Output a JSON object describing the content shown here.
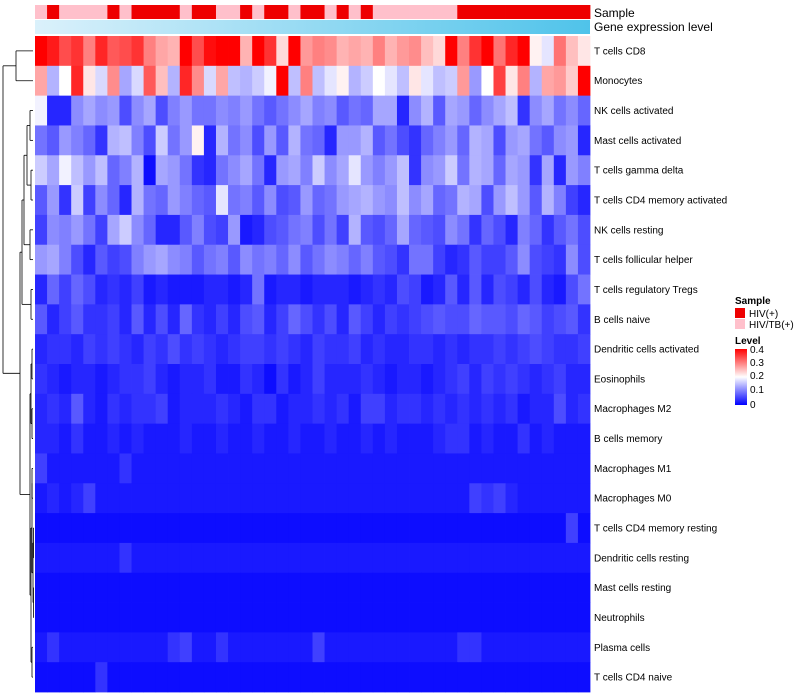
{
  "chart_data": {
    "type": "heatmap",
    "annotation_rows": [
      "Sample",
      "Gene expression level"
    ],
    "row_labels": [
      "T cells CD8",
      "Monocytes",
      "NK cells activated",
      "Mast cells activated",
      "T cells gamma delta",
      "T cells CD4 memory activated",
      "NK cells resting",
      "T cells follicular helper",
      "T cells regulatory  Tregs",
      "B cells naive",
      "Dendritic cells activated",
      "Eosinophils",
      "Macrophages M2",
      "B cells memory",
      "Macrophages M1",
      "Macrophages M0",
      "T cells CD4 memory resting",
      "Dendritic cells resting",
      "Mast cells resting",
      "Neutrophils",
      "Plasma cells",
      "T cells CD4 naive"
    ],
    "sample_groups": [
      "HIV/TB(+)",
      "HIV(+)",
      "HIV/TB(+)",
      "HIV/TB(+)",
      "HIV/TB(+)",
      "HIV/TB(+)",
      "HIV(+)",
      "HIV/TB(+)",
      "HIV(+)",
      "HIV(+)",
      "HIV(+)",
      "HIV(+)",
      "HIV/TB(+)",
      "HIV(+)",
      "HIV(+)",
      "HIV/TB(+)",
      "HIV/TB(+)",
      "HIV(+)",
      "HIV/TB(+)",
      "HIV(+)",
      "HIV(+)",
      "HIV/TB(+)",
      "HIV(+)",
      "HIV(+)",
      "HIV/TB(+)",
      "HIV(+)",
      "HIV/TB(+)",
      "HIV(+)",
      "HIV/TB(+)",
      "HIV/TB(+)",
      "HIV/TB(+)",
      "HIV/TB(+)",
      "HIV/TB(+)",
      "HIV/TB(+)",
      "HIV/TB(+)",
      "HIV(+)",
      "HIV(+)",
      "HIV(+)",
      "HIV(+)",
      "HIV(+)",
      "HIV(+)",
      "HIV(+)",
      "HIV(+)",
      "HIV(+)",
      "HIV(+)",
      "HIV(+)"
    ],
    "values": [
      [
        0.4,
        0.38,
        0.34,
        0.36,
        0.3,
        0.37,
        0.33,
        0.34,
        0.36,
        0.3,
        0.27,
        0.26,
        0.4,
        0.34,
        0.39,
        0.4,
        0.4,
        0.26,
        0.4,
        0.36,
        0.23,
        0.4,
        0.28,
        0.3,
        0.29,
        0.26,
        0.27,
        0.26,
        0.3,
        0.26,
        0.28,
        0.29,
        0.25,
        0.23,
        0.4,
        0.3,
        0.36,
        0.4,
        0.31,
        0.37,
        0.4,
        0.21,
        0.18,
        0.31,
        0.25,
        0.22
      ],
      [
        0.27,
        0.14,
        0.2,
        0.37,
        0.22,
        0.17,
        0.29,
        0.13,
        0.17,
        0.33,
        0.25,
        0.14,
        0.37,
        0.29,
        0.17,
        0.27,
        0.15,
        0.14,
        0.16,
        0.19,
        0.4,
        0.15,
        0.3,
        0.15,
        0.18,
        0.21,
        0.14,
        0.16,
        0.2,
        0.18,
        0.15,
        0.22,
        0.18,
        0.15,
        0.16,
        0.28,
        0.12,
        0.2,
        0.35,
        0.22,
        0.3,
        0.14,
        0.27,
        0.28,
        0.24,
        0.4
      ],
      [
        0.19,
        0.03,
        0.03,
        0.11,
        0.13,
        0.11,
        0.12,
        0.06,
        0.11,
        0.13,
        0.06,
        0.1,
        0.12,
        0.09,
        0.09,
        0.11,
        0.1,
        0.12,
        0.09,
        0.07,
        0.09,
        0.11,
        0.13,
        0.1,
        0.11,
        0.07,
        0.09,
        0.08,
        0.13,
        0.13,
        0.03,
        0.11,
        0.14,
        0.07,
        0.13,
        0.12,
        0.08,
        0.11,
        0.13,
        0.15,
        0.04,
        0.11,
        0.13,
        0.09,
        0.11,
        0.08
      ],
      [
        0.09,
        0.07,
        0.12,
        0.1,
        0.08,
        0.04,
        0.14,
        0.15,
        0.1,
        0.06,
        0.16,
        0.09,
        0.12,
        0.21,
        0.03,
        0.14,
        0.09,
        0.11,
        0.06,
        0.12,
        0.07,
        0.14,
        0.09,
        0.08,
        0.03,
        0.12,
        0.12,
        0.14,
        0.07,
        0.09,
        0.06,
        0.04,
        0.08,
        0.1,
        0.12,
        0.08,
        0.14,
        0.13,
        0.06,
        0.12,
        0.13,
        0.09,
        0.07,
        0.11,
        0.12,
        0.03
      ],
      [
        0.16,
        0.13,
        0.19,
        0.15,
        0.12,
        0.15,
        0.08,
        0.1,
        0.14,
        0.01,
        0.13,
        0.12,
        0.09,
        0.04,
        0.03,
        0.09,
        0.11,
        0.13,
        0.09,
        0.03,
        0.12,
        0.13,
        0.1,
        0.16,
        0.11,
        0.13,
        0.18,
        0.12,
        0.1,
        0.12,
        0.15,
        0.04,
        0.11,
        0.12,
        0.16,
        0.09,
        0.14,
        0.13,
        0.08,
        0.13,
        0.12,
        0.04,
        0.13,
        0.03,
        0.12,
        0.1
      ],
      [
        0.07,
        0.12,
        0.04,
        0.16,
        0.05,
        0.11,
        0.08,
        0.03,
        0.14,
        0.09,
        0.08,
        0.12,
        0.1,
        0.08,
        0.07,
        0.18,
        0.09,
        0.1,
        0.07,
        0.11,
        0.06,
        0.07,
        0.12,
        0.08,
        0.09,
        0.12,
        0.13,
        0.14,
        0.12,
        0.11,
        0.15,
        0.11,
        0.13,
        0.08,
        0.09,
        0.14,
        0.13,
        0.06,
        0.12,
        0.15,
        0.12,
        0.07,
        0.14,
        0.1,
        0.05,
        0.03
      ],
      [
        0.05,
        0.11,
        0.1,
        0.12,
        0.09,
        0.05,
        0.13,
        0.16,
        0.11,
        0.08,
        0.03,
        0.03,
        0.07,
        0.1,
        0.06,
        0.05,
        0.12,
        0.02,
        0.03,
        0.06,
        0.07,
        0.09,
        0.1,
        0.06,
        0.09,
        0.05,
        0.14,
        0.07,
        0.06,
        0.08,
        0.13,
        0.08,
        0.07,
        0.06,
        0.11,
        0.09,
        0.04,
        0.08,
        0.06,
        0.03,
        0.1,
        0.08,
        0.04,
        0.07,
        0.09,
        0.06
      ],
      [
        0.12,
        0.13,
        0.1,
        0.06,
        0.03,
        0.07,
        0.05,
        0.06,
        0.1,
        0.12,
        0.13,
        0.11,
        0.1,
        0.07,
        0.09,
        0.1,
        0.07,
        0.11,
        0.09,
        0.1,
        0.08,
        0.11,
        0.07,
        0.09,
        0.11,
        0.1,
        0.08,
        0.1,
        0.07,
        0.06,
        0.04,
        0.09,
        0.09,
        0.05,
        0.03,
        0.04,
        0.07,
        0.05,
        0.05,
        0.07,
        0.11,
        0.06,
        0.05,
        0.04,
        0.11,
        0.06
      ],
      [
        0.03,
        0.08,
        0.05,
        0.08,
        0.06,
        0.03,
        0.04,
        0.03,
        0.05,
        0.02,
        0.03,
        0.02,
        0.02,
        0.02,
        0.03,
        0.03,
        0.02,
        0.03,
        0.09,
        0.02,
        0.03,
        0.03,
        0.02,
        0.03,
        0.03,
        0.03,
        0.02,
        0.03,
        0.04,
        0.03,
        0.06,
        0.05,
        0.02,
        0.03,
        0.07,
        0.03,
        0.07,
        0.03,
        0.06,
        0.05,
        0.03,
        0.06,
        0.03,
        0.02,
        0.06,
        0.09
      ],
      [
        0.07,
        0.03,
        0.05,
        0.07,
        0.04,
        0.04,
        0.05,
        0.03,
        0.07,
        0.03,
        0.06,
        0.03,
        0.08,
        0.04,
        0.03,
        0.05,
        0.03,
        0.06,
        0.07,
        0.03,
        0.05,
        0.08,
        0.06,
        0.04,
        0.06,
        0.03,
        0.07,
        0.05,
        0.03,
        0.05,
        0.04,
        0.05,
        0.06,
        0.07,
        0.06,
        0.06,
        0.08,
        0.07,
        0.07,
        0.06,
        0.08,
        0.07,
        0.05,
        0.06,
        0.07,
        0.04
      ],
      [
        0.03,
        0.04,
        0.04,
        0.03,
        0.05,
        0.04,
        0.05,
        0.04,
        0.03,
        0.05,
        0.04,
        0.06,
        0.04,
        0.05,
        0.04,
        0.03,
        0.04,
        0.05,
        0.05,
        0.04,
        0.05,
        0.04,
        0.03,
        0.05,
        0.04,
        0.04,
        0.05,
        0.03,
        0.04,
        0.03,
        0.03,
        0.04,
        0.04,
        0.03,
        0.04,
        0.03,
        0.04,
        0.04,
        0.05,
        0.04,
        0.05,
        0.06,
        0.05,
        0.04,
        0.04,
        0.05
      ],
      [
        0.04,
        0.03,
        0.02,
        0.03,
        0.03,
        0.02,
        0.03,
        0.04,
        0.04,
        0.05,
        0.03,
        0.02,
        0.03,
        0.03,
        0.04,
        0.02,
        0.02,
        0.04,
        0.03,
        0.01,
        0.04,
        0.02,
        0.03,
        0.05,
        0.03,
        0.03,
        0.03,
        0.04,
        0.03,
        0.02,
        0.03,
        0.03,
        0.02,
        0.03,
        0.04,
        0.05,
        0.03,
        0.05,
        0.04,
        0.05,
        0.04,
        0.03,
        0.04,
        0.05,
        0.03,
        0.03
      ],
      [
        0.03,
        0.04,
        0.03,
        0.07,
        0.03,
        0.02,
        0.04,
        0.03,
        0.04,
        0.04,
        0.05,
        0.02,
        0.03,
        0.03,
        0.03,
        0.04,
        0.03,
        0.02,
        0.04,
        0.04,
        0.02,
        0.03,
        0.03,
        0.04,
        0.03,
        0.04,
        0.02,
        0.05,
        0.05,
        0.03,
        0.04,
        0.04,
        0.03,
        0.04,
        0.03,
        0.04,
        0.03,
        0.04,
        0.03,
        0.04,
        0.02,
        0.03,
        0.03,
        0.06,
        0.03,
        0.04
      ],
      [
        0.03,
        0.03,
        0.02,
        0.04,
        0.02,
        0.02,
        0.03,
        0.02,
        0.03,
        0.02,
        0.02,
        0.02,
        0.03,
        0.02,
        0.02,
        0.03,
        0.02,
        0.02,
        0.03,
        0.02,
        0.02,
        0.03,
        0.02,
        0.02,
        0.03,
        0.02,
        0.02,
        0.03,
        0.02,
        0.03,
        0.02,
        0.02,
        0.02,
        0.03,
        0.04,
        0.04,
        0.02,
        0.03,
        0.02,
        0.02,
        0.04,
        0.02,
        0.03,
        0.02,
        0.02,
        0.02
      ],
      [
        0.05,
        0.02,
        0.02,
        0.02,
        0.02,
        0.02,
        0.02,
        0.04,
        0.02,
        0.02,
        0.02,
        0.02,
        0.02,
        0.02,
        0.02,
        0.02,
        0.02,
        0.02,
        0.02,
        0.02,
        0.02,
        0.02,
        0.02,
        0.02,
        0.02,
        0.02,
        0.02,
        0.02,
        0.02,
        0.02,
        0.02,
        0.02,
        0.02,
        0.02,
        0.02,
        0.02,
        0.02,
        0.02,
        0.02,
        0.02,
        0.02,
        0.02,
        0.02,
        0.02,
        0.02,
        0.02
      ],
      [
        0.02,
        0.03,
        0.02,
        0.03,
        0.05,
        0.02,
        0.02,
        0.02,
        0.02,
        0.02,
        0.02,
        0.02,
        0.02,
        0.02,
        0.02,
        0.02,
        0.02,
        0.02,
        0.02,
        0.02,
        0.02,
        0.02,
        0.02,
        0.02,
        0.02,
        0.02,
        0.02,
        0.02,
        0.02,
        0.02,
        0.02,
        0.02,
        0.02,
        0.02,
        0.02,
        0.02,
        0.05,
        0.04,
        0.05,
        0.03,
        0.02,
        0.02,
        0.02,
        0.02,
        0.02,
        0.02
      ],
      [
        0.01,
        0.01,
        0.01,
        0.01,
        0.01,
        0.01,
        0.01,
        0.01,
        0.01,
        0.01,
        0.01,
        0.01,
        0.01,
        0.01,
        0.01,
        0.01,
        0.01,
        0.01,
        0.01,
        0.01,
        0.01,
        0.01,
        0.01,
        0.01,
        0.01,
        0.01,
        0.01,
        0.01,
        0.01,
        0.01,
        0.01,
        0.01,
        0.01,
        0.01,
        0.01,
        0.01,
        0.01,
        0.01,
        0.01,
        0.01,
        0.01,
        0.01,
        0.01,
        0.01,
        0.05,
        0.01
      ],
      [
        0.02,
        0.02,
        0.02,
        0.02,
        0.02,
        0.02,
        0.02,
        0.04,
        0.02,
        0.02,
        0.02,
        0.02,
        0.02,
        0.02,
        0.02,
        0.02,
        0.02,
        0.02,
        0.02,
        0.02,
        0.02,
        0.02,
        0.02,
        0.02,
        0.02,
        0.02,
        0.02,
        0.02,
        0.02,
        0.02,
        0.02,
        0.02,
        0.02,
        0.02,
        0.02,
        0.02,
        0.02,
        0.02,
        0.02,
        0.02,
        0.02,
        0.02,
        0.02,
        0.02,
        0.02,
        0.02
      ],
      [
        0.01,
        0.01,
        0.01,
        0.01,
        0.01,
        0.01,
        0.01,
        0.01,
        0.01,
        0.01,
        0.01,
        0.01,
        0.01,
        0.01,
        0.01,
        0.01,
        0.01,
        0.01,
        0.01,
        0.01,
        0.01,
        0.01,
        0.01,
        0.01,
        0.01,
        0.01,
        0.01,
        0.01,
        0.01,
        0.01,
        0.01,
        0.01,
        0.01,
        0.01,
        0.01,
        0.01,
        0.01,
        0.01,
        0.01,
        0.01,
        0.01,
        0.01,
        0.01,
        0.01,
        0.01,
        0.01
      ],
      [
        0.01,
        0.01,
        0.01,
        0.01,
        0.01,
        0.01,
        0.01,
        0.01,
        0.01,
        0.01,
        0.01,
        0.01,
        0.01,
        0.01,
        0.01,
        0.01,
        0.01,
        0.01,
        0.01,
        0.01,
        0.01,
        0.01,
        0.01,
        0.01,
        0.01,
        0.01,
        0.01,
        0.01,
        0.01,
        0.01,
        0.01,
        0.01,
        0.01,
        0.01,
        0.01,
        0.01,
        0.01,
        0.01,
        0.01,
        0.01,
        0.01,
        0.01,
        0.01,
        0.01,
        0.01,
        0.01
      ],
      [
        0.02,
        0.04,
        0.02,
        0.02,
        0.02,
        0.02,
        0.02,
        0.02,
        0.02,
        0.02,
        0.02,
        0.04,
        0.05,
        0.02,
        0.02,
        0.04,
        0.02,
        0.02,
        0.02,
        0.02,
        0.02,
        0.02,
        0.02,
        0.05,
        0.02,
        0.02,
        0.02,
        0.02,
        0.02,
        0.02,
        0.02,
        0.02,
        0.02,
        0.02,
        0.02,
        0.04,
        0.04,
        0.02,
        0.02,
        0.02,
        0.02,
        0.02,
        0.02,
        0.02,
        0.02,
        0.02
      ],
      [
        0.01,
        0.01,
        0.01,
        0.01,
        0.01,
        0.04,
        0.01,
        0.01,
        0.01,
        0.01,
        0.01,
        0.01,
        0.01,
        0.01,
        0.01,
        0.01,
        0.01,
        0.01,
        0.01,
        0.01,
        0.01,
        0.01,
        0.01,
        0.01,
        0.01,
        0.01,
        0.01,
        0.01,
        0.01,
        0.01,
        0.01,
        0.01,
        0.01,
        0.01,
        0.01,
        0.01,
        0.01,
        0.01,
        0.01,
        0.01,
        0.01,
        0.01,
        0.01,
        0.01,
        0.01,
        0.01
      ]
    ],
    "legend": {
      "sample_title": "Sample",
      "sample_entries": [
        {
          "label": "HIV(+)",
          "color": "#ee0000"
        },
        {
          "label": "HIV/TB(+)",
          "color": "#ffc0cb"
        }
      ],
      "level_title": "Level",
      "level_ticks": [
        "0.4",
        "0.3",
        "0.2",
        "0.1",
        "0"
      ],
      "level_range": [
        0,
        0.4
      ]
    },
    "colors": {
      "low": "#0000ff",
      "mid": "#ffffff",
      "high": "#ff0000",
      "expression_bar_start": "#dbf1fb",
      "expression_bar_end": "#4fc3ea"
    }
  }
}
